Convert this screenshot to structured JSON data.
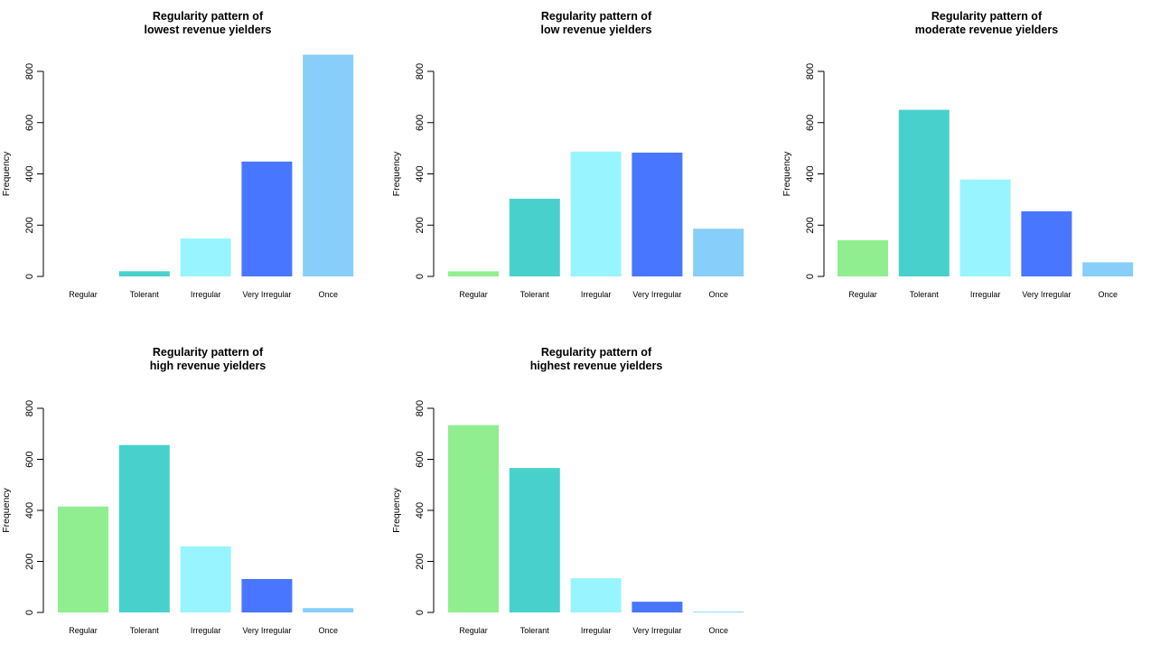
{
  "colors": {
    "Regular": "#90EE90",
    "Tolerant": "#48D1CC",
    "Irregular": "#98F5FF",
    "Very Irregular": "#4876FF",
    "Once": "#87CEFA"
  },
  "chart_data": [
    {
      "type": "bar",
      "title": [
        "Regularity pattern of",
        "lowest revenue yielders"
      ],
      "ylabel": "Frequency",
      "categories": [
        "Regular",
        "Tolerant",
        "Irregular",
        "Very Irregular",
        "Once"
      ],
      "values": [
        0,
        20,
        148,
        448,
        865
      ],
      "ylim": [
        0,
        800
      ],
      "yticks": [
        "0",
        "200",
        "400",
        "600",
        "800"
      ]
    },
    {
      "type": "bar",
      "title": [
        "Regularity pattern of",
        "low revenue yielders"
      ],
      "ylabel": "Frequency",
      "categories": [
        "Regular",
        "Tolerant",
        "Irregular",
        "Very Irregular",
        "Once"
      ],
      "values": [
        20,
        303,
        487,
        483,
        186
      ],
      "ylim": [
        0,
        800
      ],
      "yticks": [
        "0",
        "200",
        "400",
        "600",
        "800"
      ]
    },
    {
      "type": "bar",
      "title": [
        "Regularity pattern of",
        "moderate revenue yielders"
      ],
      "ylabel": "Frequency",
      "categories": [
        "Regular",
        "Tolerant",
        "Irregular",
        "Very Irregular",
        "Once"
      ],
      "values": [
        141,
        650,
        378,
        254,
        55
      ],
      "ylim": [
        0,
        800
      ],
      "yticks": [
        "0",
        "200",
        "400",
        "600",
        "800"
      ]
    },
    {
      "type": "bar",
      "title": [
        "Regularity pattern of",
        "high revenue yielders"
      ],
      "ylabel": "Frequency",
      "categories": [
        "Regular",
        "Tolerant",
        "Irregular",
        "Very Irregular",
        "Once"
      ],
      "values": [
        415,
        656,
        259,
        131,
        17
      ],
      "ylim": [
        0,
        800
      ],
      "yticks": [
        "0",
        "200",
        "400",
        "600",
        "800"
      ]
    },
    {
      "type": "bar",
      "title": [
        "Regularity pattern of",
        "highest revenue yielders"
      ],
      "ylabel": "Frequency",
      "categories": [
        "Regular",
        "Tolerant",
        "Irregular",
        "Very Irregular",
        "Once"
      ],
      "values": [
        734,
        566,
        134,
        42,
        3
      ],
      "ylim": [
        0,
        800
      ],
      "yticks": [
        "0",
        "200",
        "400",
        "600",
        "800"
      ]
    }
  ]
}
